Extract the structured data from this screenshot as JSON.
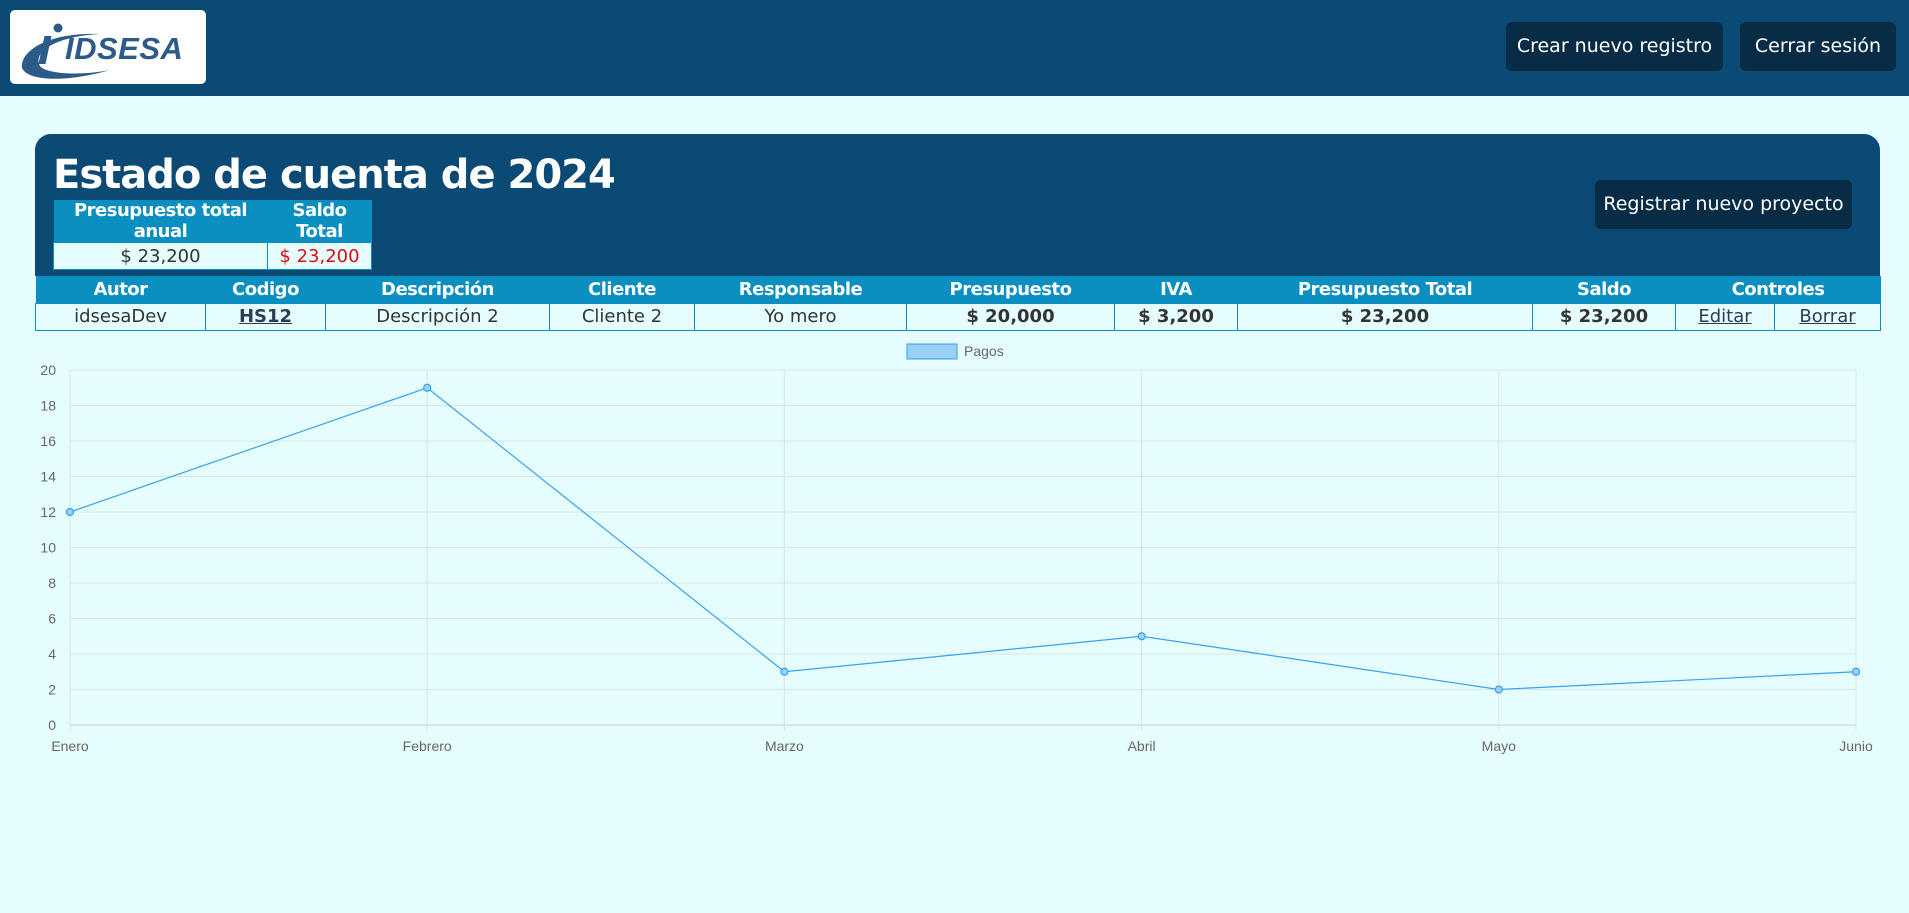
{
  "header": {
    "logo_text": "IDSESA",
    "new_record_label": "Crear nuevo registro",
    "logout_label": "Cerrar sesión"
  },
  "panel": {
    "title": "Estado de cuenta de 2024",
    "register_project_label": "Registrar nuevo proyecto",
    "summary": {
      "headers": [
        "Presupuesto total anual",
        "Saldo Total"
      ],
      "values": [
        "$ 23,200",
        "$ 23,200"
      ]
    }
  },
  "table": {
    "headers": [
      "Autor",
      "Codigo",
      "Descripción",
      "Cliente",
      "Responsable",
      "Presupuesto",
      "IVA",
      "Presupuesto Total",
      "Saldo",
      "Controles"
    ],
    "rows": [
      {
        "autor": "idsesaDev",
        "codigo": "HS12",
        "descripcion": "Descripción 2",
        "cliente": "Cliente 2",
        "responsable": "Yo mero",
        "presupuesto": "$ 20,000",
        "iva": "$ 3,200",
        "presupuesto_total": "$ 23,200",
        "saldo": "$ 23,200",
        "edit_label": "Editar",
        "delete_label": "Borrar"
      }
    ]
  },
  "colors": {
    "header_bg": "#0a4a75",
    "table_header_bg": "#0a8fc0",
    "page_bg": "#e6fdfd",
    "negative": "#e10b14",
    "line": "#36a2eb"
  },
  "chart_data": {
    "type": "line",
    "categories": [
      "Enero",
      "Febrero",
      "Marzo",
      "Abril",
      "Mayo",
      "Junio"
    ],
    "series": [
      {
        "name": "Pagos",
        "values": [
          12,
          19,
          3,
          5,
          2,
          3
        ]
      }
    ],
    "ylim": [
      0,
      20
    ],
    "yticks": [
      0,
      2,
      4,
      6,
      8,
      10,
      12,
      14,
      16,
      18,
      20
    ],
    "grid": true,
    "legend": "top-center"
  }
}
